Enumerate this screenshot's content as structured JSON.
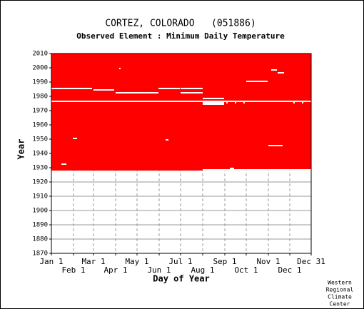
{
  "chart_data": {
    "type": "coverage",
    "title": "CORTEZ, COLORADO   (051886)",
    "subtitle": "Observed Element : Minimum Daily Temperature",
    "x_label": "Day of Year",
    "y_label": "Year",
    "xlim": [
      1,
      365
    ],
    "xticks": [
      {
        "value": 1,
        "label": "Jan 1"
      },
      {
        "value": 32,
        "label": "Feb 1"
      },
      {
        "value": 60,
        "label": "Mar 1"
      },
      {
        "value": 91,
        "label": "Apr 1"
      },
      {
        "value": 121,
        "label": "May 1"
      },
      {
        "value": 152,
        "label": "Jun 1"
      },
      {
        "value": 182,
        "label": "Jul 1"
      },
      {
        "value": 213,
        "label": "Aug 1"
      },
      {
        "value": 244,
        "label": "Sep 1"
      },
      {
        "value": 274,
        "label": "Oct 1"
      },
      {
        "value": 305,
        "label": "Nov 1"
      },
      {
        "value": 335,
        "label": "Dec 1"
      },
      {
        "value": 365,
        "label": "Dec 31"
      }
    ],
    "ylim": [
      1870,
      2010
    ],
    "yticks": [
      1870,
      1880,
      1890,
      1900,
      1910,
      1920,
      1930,
      1940,
      1950,
      1960,
      1970,
      1980,
      1990,
      2000,
      2010
    ],
    "grid": true,
    "color": "#ff0000",
    "coverage": [
      1928,
      2010
    ],
    "missing": [
      [
        1985,
        1,
        58
      ],
      [
        1984,
        60,
        89
      ],
      [
        1976,
        1,
        365
      ],
      [
        1982,
        91,
        151
      ],
      [
        1985,
        151,
        181
      ],
      [
        1985,
        182,
        213
      ],
      [
        1982,
        182,
        213
      ],
      [
        1978,
        213,
        243
      ],
      [
        1975,
        213,
        243
      ],
      [
        1974,
        213,
        243
      ],
      [
        1990,
        274,
        304
      ],
      [
        1998,
        309,
        317
      ],
      [
        1996,
        318,
        327
      ],
      [
        1999,
        96,
        98
      ],
      [
        1945,
        305,
        325
      ],
      [
        1950,
        31,
        37
      ],
      [
        1949,
        161,
        165
      ],
      [
        1932,
        15,
        22
      ],
      [
        1929,
        251,
        257
      ],
      [
        1928,
        213,
        365
      ],
      [
        1975,
        246,
        248
      ],
      [
        1975,
        258,
        260
      ],
      [
        1975,
        270,
        272
      ],
      [
        1975,
        340,
        342
      ],
      [
        1975,
        352,
        354
      ]
    ],
    "credit": [
      "Western",
      "Regional",
      "Climate",
      "Center"
    ]
  }
}
